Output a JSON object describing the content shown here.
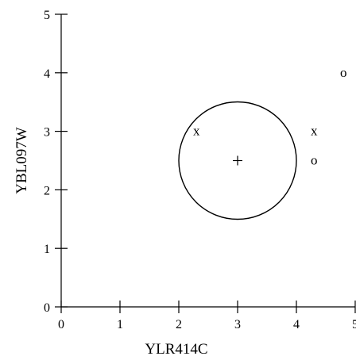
{
  "chart_data": {
    "type": "scatter",
    "xlabel": "YLR414C",
    "ylabel": "YBL097W",
    "xlim": [
      0,
      5
    ],
    "ylim": [
      0,
      5
    ],
    "xticks": [
      "0",
      "1",
      "2",
      "3",
      "4",
      "5"
    ],
    "yticks": [
      "0",
      "1",
      "2",
      "3",
      "4",
      "5"
    ],
    "grid": false,
    "points": [
      {
        "x": 2.3,
        "y": 3.0,
        "marker": "x"
      },
      {
        "x": 4.3,
        "y": 3.0,
        "marker": "x"
      },
      {
        "x": 4.3,
        "y": 2.5,
        "marker": "o"
      },
      {
        "x": 4.8,
        "y": 4.0,
        "marker": "o"
      }
    ],
    "center": {
      "x": 3.0,
      "y": 2.5,
      "marker": "+"
    },
    "circle": {
      "cx": 3.0,
      "cy": 2.5,
      "radius": 1.0
    }
  }
}
